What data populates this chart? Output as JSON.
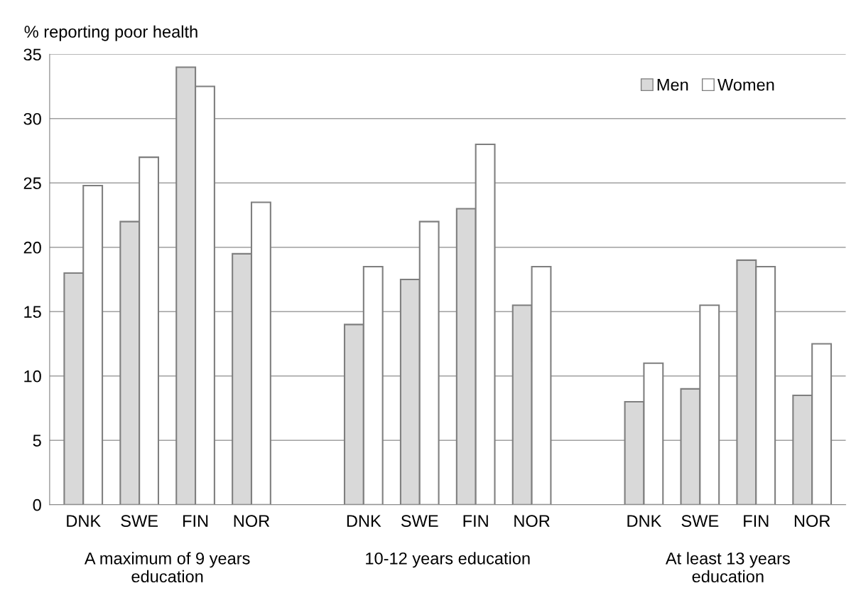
{
  "chart_data": {
    "type": "bar",
    "ylabel": "% reporting poor health",
    "categories": [
      "DNK",
      "SWE",
      "FIN",
      "NOR",
      null,
      "DNK",
      "SWE",
      "FIN",
      "NOR",
      null,
      "DNK",
      "SWE",
      "FIN",
      "NOR"
    ],
    "series": [
      {
        "name": "Men",
        "color": "#d9d9d9",
        "values": [
          18,
          22,
          34,
          19.5,
          null,
          14,
          17.5,
          23,
          15.5,
          null,
          8,
          9,
          19,
          8.5
        ]
      },
      {
        "name": "Women",
        "color": "#ffffff",
        "values": [
          24.8,
          27,
          32.5,
          23.5,
          null,
          18.5,
          22,
          28,
          18.5,
          null,
          11,
          15.5,
          18.5,
          12.5
        ]
      }
    ],
    "annotations": [
      "A maximum of 9 years\neducation",
      "10-12 years education",
      "At least 13 years\neducation"
    ],
    "ylim": [
      0,
      35
    ],
    "yticks": [
      0,
      5,
      10,
      15,
      20,
      25,
      30,
      35
    ],
    "grid": "y",
    "legend": "top right"
  }
}
